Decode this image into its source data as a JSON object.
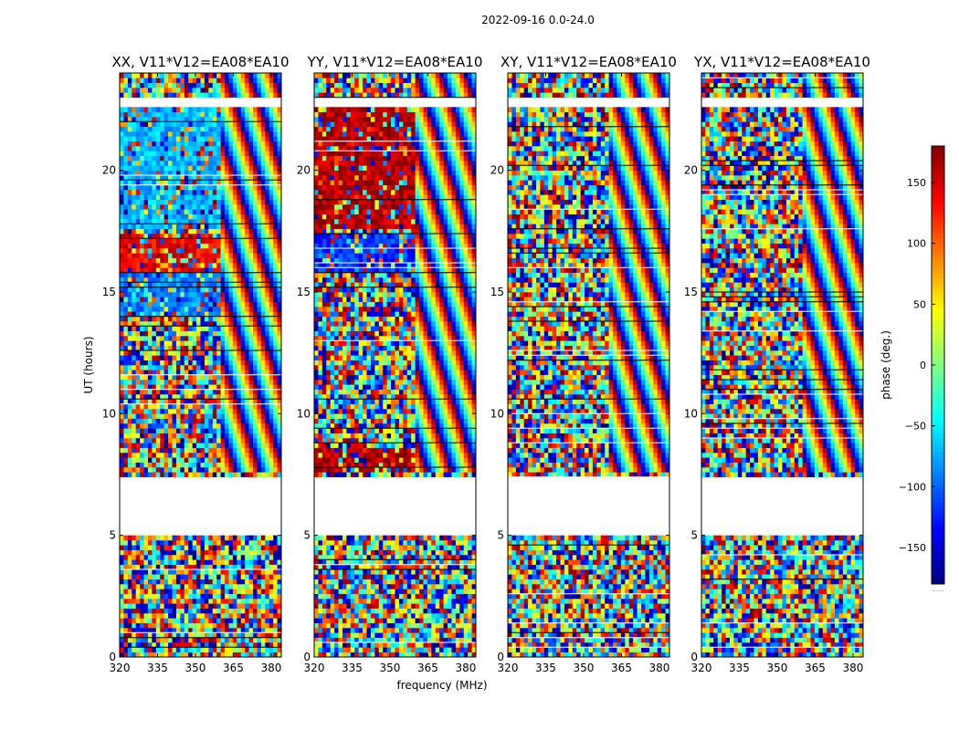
{
  "chart_data": {
    "type": "heatmap",
    "title": "2022-09-16 0.0-24.0",
    "xlabel": "frequency (MHz)",
    "ylabel": "UT (hours)",
    "xlim": [
      320,
      384
    ],
    "ylim": [
      0,
      24
    ],
    "xticks": [
      320,
      335,
      350,
      365,
      380
    ],
    "yticks": [
      0,
      5,
      10,
      15,
      20
    ],
    "colorbar": {
      "label": "phase (deg.)",
      "range": [
        -180,
        180
      ],
      "ticks": [
        150,
        100,
        50,
        0,
        -50,
        -100,
        -150
      ],
      "tick_labels": [
        "150",
        "100",
        "50",
        "0",
        "−50",
        "−100",
        "−150"
      ],
      "colormap": "jet",
      "under_label": "......"
    },
    "panels": [
      {
        "title": "XX, V11*V12=EA08*EA10",
        "product": "XX"
      },
      {
        "title": "YY, V11*V12=EA08*EA10",
        "product": "YY"
      },
      {
        "title": "XY, V11*V12=EA08*EA10",
        "product": "XY"
      },
      {
        "title": "YX, V11*V12=EA08*EA10",
        "product": "YX"
      }
    ],
    "data_gaps_hours": [
      [
        5.0,
        7.5
      ],
      [
        22.6,
        23.0
      ]
    ],
    "coherent_regions": [
      {
        "panel": "XX",
        "hours": [
          17.5,
          22.5
        ],
        "freq": [
          320,
          360
        ],
        "phase_deg": -70
      },
      {
        "panel": "XX",
        "hours": [
          15.8,
          17.3
        ],
        "freq": [
          320,
          360
        ],
        "phase_deg": 140
      },
      {
        "panel": "XX",
        "hours": [
          14.0,
          15.8
        ],
        "freq": [
          320,
          360
        ],
        "phase_deg": -90
      },
      {
        "panel": "YY",
        "hours": [
          17.5,
          22.5
        ],
        "freq": [
          320,
          360
        ],
        "phase_deg": 160
      },
      {
        "panel": "YY",
        "hours": [
          15.8,
          17.3
        ],
        "freq": [
          320,
          360
        ],
        "phase_deg": -120
      },
      {
        "panel": "YY",
        "hours": [
          7.5,
          8.6
        ],
        "freq": [
          320,
          360
        ],
        "phase_deg": 160
      }
    ]
  }
}
